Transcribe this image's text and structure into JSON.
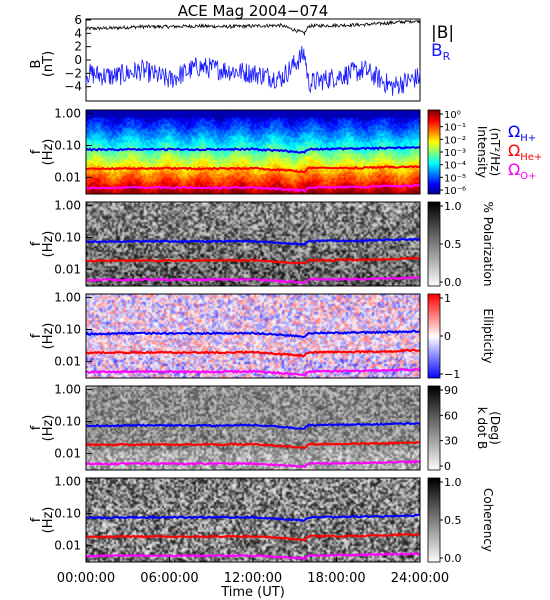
{
  "chart_data": {
    "title": "ACE Mag 2004−074",
    "xlabel": "Time (UT)",
    "x_ticks": [
      "00:00:00",
      "06:00:00",
      "12:00:00",
      "18:00:00",
      "24:00:00"
    ],
    "panels": [
      {
        "type": "line",
        "ylabel": "B",
        "yunit": "(nT)",
        "ylim": [
          -6,
          6
        ],
        "y_ticks": [
          "6",
          "4",
          "2",
          "0",
          "−2",
          "−4"
        ],
        "y_tick_values": [
          6,
          4,
          2,
          0,
          -2,
          -4
        ],
        "series": [
          {
            "name": "|B|",
            "color": "#000000",
            "x": [
              0,
              2,
              4,
              6,
              8,
              10,
              12,
              14,
              15.7,
              16,
              18,
              20,
              22,
              24
            ],
            "values": [
              4.7,
              4.8,
              5.0,
              5.0,
              5.1,
              5.0,
              5.1,
              5.2,
              4.0,
              5.1,
              5.2,
              5.3,
              5.6,
              5.9
            ]
          },
          {
            "name": "B",
            "name_sub": "R",
            "color": "#1a1aff",
            "x": [
              0,
              2,
              4,
              6,
              8,
              10,
              12,
              14,
              15.7,
              16,
              18,
              20,
              22,
              24
            ],
            "values": [
              -2.0,
              -2.5,
              -1.5,
              -3.0,
              -1.0,
              -1.5,
              -2.0,
              -2.8,
              1.0,
              -3.5,
              -2.5,
              -1.5,
              -4.0,
              -2.5
            ]
          }
        ]
      },
      {
        "type": "heatmap",
        "quantity": "intensity",
        "ylabel": "f",
        "yunit": "(Hz)",
        "cbar_label": "Intensity",
        "cbar_unit": "(nT²/Hz)",
        "cbar_ticks": [
          "10⁰",
          "10⁻¹",
          "10⁻²",
          "10⁻³",
          "10⁻⁴",
          "10⁻⁵",
          "10⁻⁶"
        ]
      },
      {
        "type": "heatmap",
        "quantity": "polarization",
        "ylabel": "f",
        "yunit": "(Hz)",
        "cbar_label": "% Polarization",
        "cbar_ticks": [
          "1.0",
          "0.5",
          "0.0"
        ]
      },
      {
        "type": "heatmap",
        "quantity": "ellipticity",
        "ylabel": "f",
        "yunit": "(Hz)",
        "cbar_label": "Ellipticity",
        "cbar_ticks": [
          "1",
          "0",
          "−1"
        ]
      },
      {
        "type": "heatmap",
        "quantity": "kdotb",
        "ylabel": "f",
        "yunit": "(Hz)",
        "cbar_label": "k dot B",
        "cbar_unit": "(Deg)",
        "cbar_ticks": [
          "90",
          "60",
          "30",
          "0"
        ]
      },
      {
        "type": "heatmap",
        "quantity": "coherency",
        "ylabel": "f",
        "yunit": "(Hz)",
        "cbar_label": "Coherency",
        "cbar_ticks": [
          "1.0",
          "0.5",
          "0.0"
        ]
      }
    ],
    "freq_ticks": [
      "1.00",
      "0.10",
      "0.01"
    ],
    "freq_tick_values": [
      1.0,
      0.1,
      0.01
    ],
    "freq_range": [
      0.003,
      1.3
    ],
    "gyro_lines": {
      "x": [
        0,
        4,
        8,
        12,
        15.7,
        16,
        20,
        24
      ],
      "series": [
        {
          "name": "Ω",
          "sub": "H+",
          "color": "#0000ff",
          "values": [
            0.073,
            0.076,
            0.075,
            0.077,
            0.06,
            0.077,
            0.08,
            0.088
          ]
        },
        {
          "name": "Ω",
          "sub": "He+",
          "color": "#ff0000",
          "values": [
            0.0185,
            0.019,
            0.0188,
            0.0193,
            0.015,
            0.0193,
            0.02,
            0.022
          ]
        },
        {
          "name": "Ω",
          "sub": "O+",
          "color": "#ff00ff",
          "values": [
            0.0046,
            0.0048,
            0.0047,
            0.0048,
            0.0038,
            0.0048,
            0.005,
            0.0055
          ]
        }
      ]
    }
  }
}
